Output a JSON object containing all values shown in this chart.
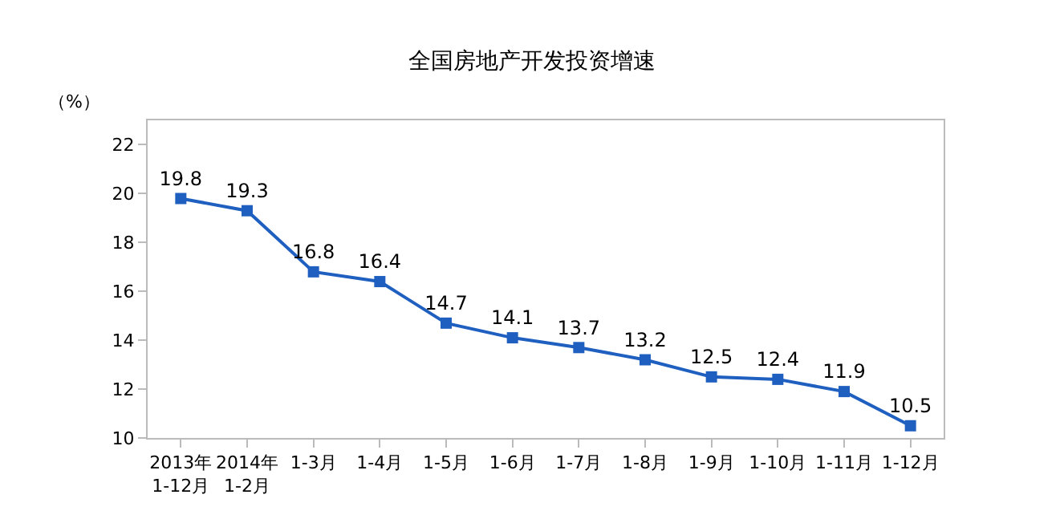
{
  "chart_data": {
    "type": "line",
    "title": "全国房地产开发投资增速",
    "ylabel": "（%）",
    "categories": [
      "2013年\n1-12月",
      "2014年\n1-2月",
      "1-3月",
      "1-4月",
      "1-5月",
      "1-6月",
      "1-7月",
      "1-8月",
      "1-9月",
      "1-10月",
      "1-11月",
      "1-12月"
    ],
    "series": [
      {
        "color": "#1f5fc0",
        "values": [
          19.8,
          19.3,
          16.8,
          16.4,
          14.7,
          14.1,
          13.7,
          13.2,
          12.5,
          12.4,
          11.9,
          10.5
        ]
      }
    ],
    "ylim": [
      10,
      23
    ],
    "yticks": [
      10,
      12,
      14,
      16,
      18,
      20,
      22
    ],
    "marker": "square",
    "line_style": "solid",
    "data_labels": true
  }
}
